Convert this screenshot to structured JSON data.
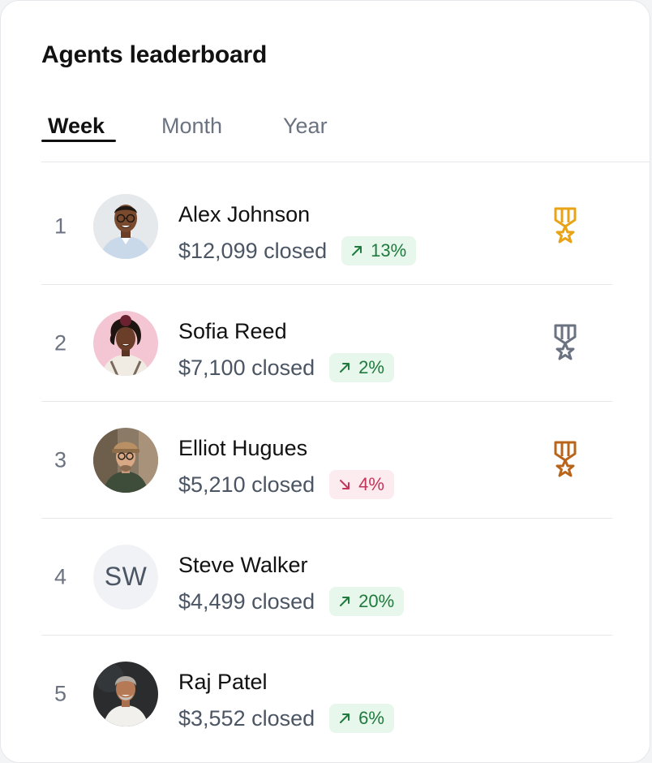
{
  "header": {
    "title": "Agents leaderboard"
  },
  "tabs": [
    {
      "label": "Week",
      "active": true
    },
    {
      "label": "Month",
      "active": false
    },
    {
      "label": "Year",
      "active": false
    }
  ],
  "agents": [
    {
      "rank": "1",
      "name": "Alex Johnson",
      "closed": "$12,099 closed",
      "change": "13%",
      "trend": "up",
      "medal": "gold",
      "avatar": "photo"
    },
    {
      "rank": "2",
      "name": "Sofia Reed",
      "closed": "$7,100 closed",
      "change": "2%",
      "trend": "up",
      "medal": "silver",
      "avatar": "photo"
    },
    {
      "rank": "3",
      "name": "Elliot Hugues",
      "closed": "$5,210 closed",
      "change": "4%",
      "trend": "down",
      "medal": "bronze",
      "avatar": "photo"
    },
    {
      "rank": "4",
      "name": "Steve Walker",
      "closed": "$4,499 closed",
      "change": "20%",
      "trend": "up",
      "medal": "",
      "avatar": "initials",
      "initials": "SW"
    },
    {
      "rank": "5",
      "name": "Raj Patel",
      "closed": "$3,552 closed",
      "change": "6%",
      "trend": "up",
      "medal": "",
      "avatar": "photo"
    }
  ],
  "colors": {
    "gold": "#e8a317",
    "silver": "#6b7280",
    "bronze": "#b8651b",
    "up_text": "#1e7a3d",
    "up_bg": "#e8f7ec",
    "down_text": "#c3365a",
    "down_bg": "#fdecef"
  },
  "icons": {
    "trend_up": "arrow-up-right-icon",
    "trend_down": "arrow-down-right-icon",
    "medal": "medal-icon"
  }
}
